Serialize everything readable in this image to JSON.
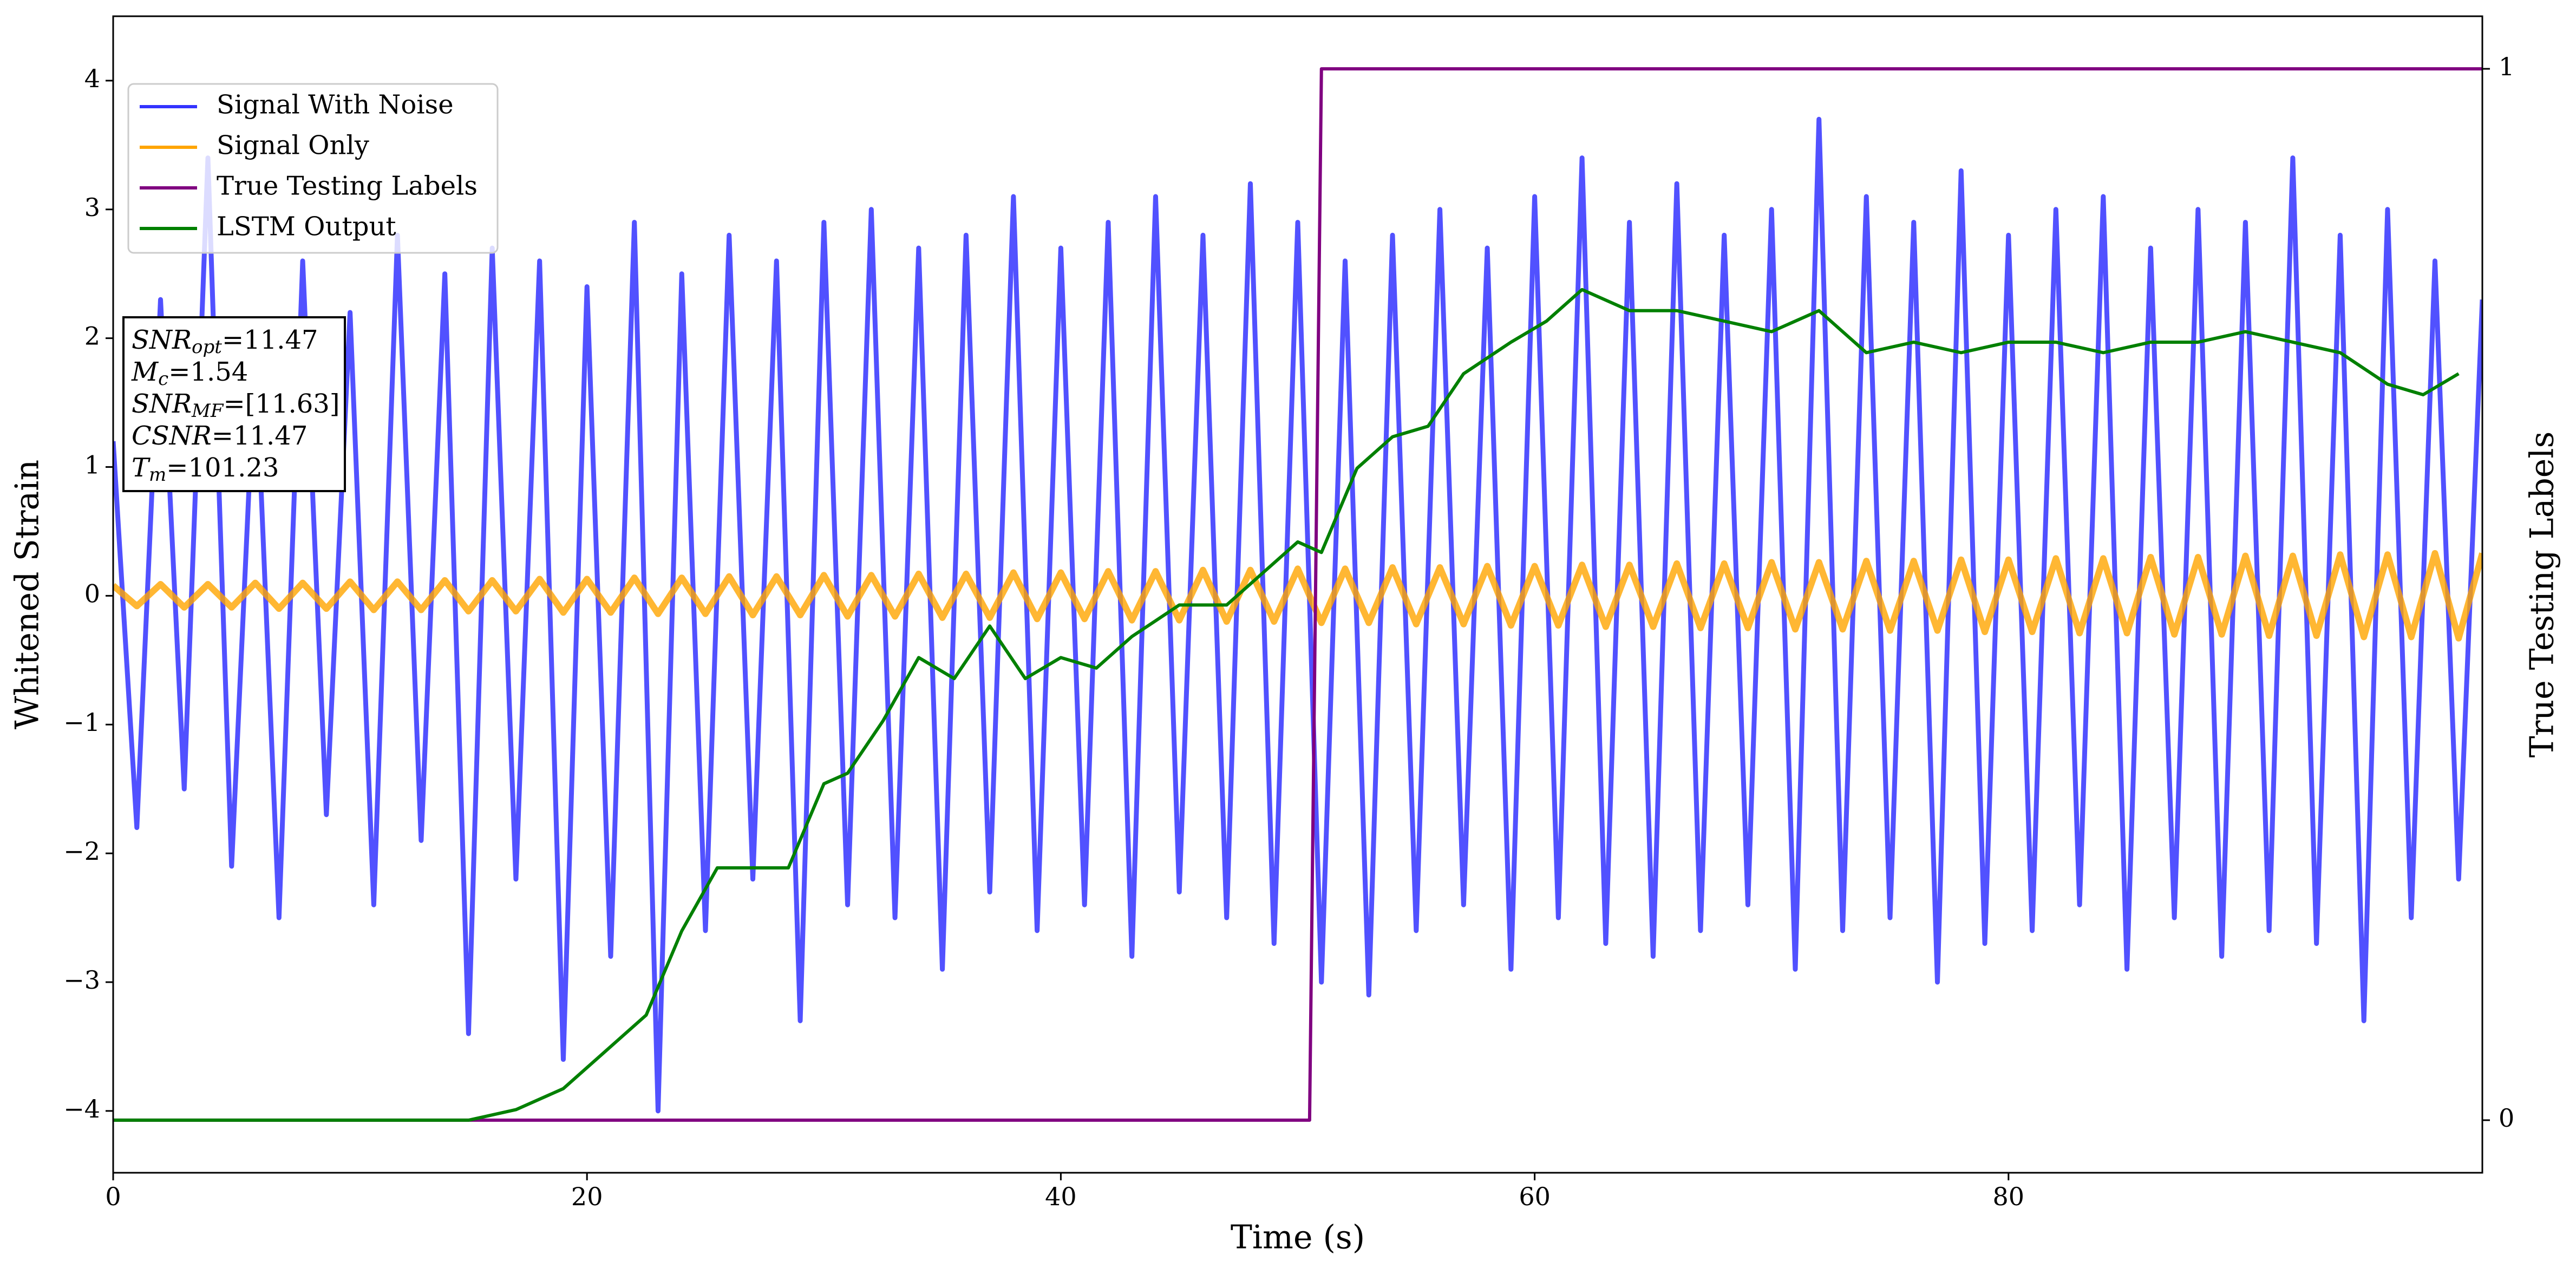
{
  "chart_data": {
    "type": "line",
    "xlabel": "Time (s)",
    "ylabel": "Whitened Strain",
    "y2label": "True Testing Labels",
    "x": [
      0,
      1,
      2,
      3,
      4,
      5,
      6,
      7,
      8,
      9,
      10,
      11,
      12,
      13,
      14,
      15,
      16,
      17,
      18,
      19,
      20,
      21,
      22,
      23,
      24,
      25,
      26,
      27,
      28,
      29,
      30,
      31,
      32,
      33,
      34,
      35,
      36,
      37,
      38,
      39,
      40,
      41,
      42,
      43,
      44,
      45,
      46,
      47,
      48,
      49,
      50,
      51,
      52,
      53,
      54,
      55,
      56,
      57,
      58,
      59,
      60,
      61,
      62,
      63,
      64,
      65,
      66,
      67,
      68,
      69,
      70,
      71,
      72,
      73,
      74,
      75,
      76,
      77,
      78,
      79,
      80,
      81,
      82,
      83,
      84,
      85,
      86,
      87,
      88,
      89,
      90,
      91,
      92,
      93,
      94,
      95,
      96,
      97,
      98,
      99,
      100
    ],
    "series": [
      {
        "name": "Signal With Noise",
        "color": "#3333ff",
        "values": [
          1.2,
          -1.8,
          2.3,
          -1.5,
          3.4,
          -2.1,
          1.9,
          -2.5,
          2.6,
          -1.7,
          2.2,
          -2.4,
          2.8,
          -1.9,
          2.5,
          -3.4,
          2.7,
          -2.2,
          2.6,
          -3.6,
          2.4,
          -2.8,
          2.9,
          -4.0,
          2.5,
          -2.6,
          2.8,
          -2.2,
          2.6,
          -3.3,
          2.9,
          -2.4,
          3.0,
          -2.5,
          2.7,
          -2.9,
          2.8,
          -2.3,
          3.1,
          -2.6,
          2.7,
          -2.4,
          2.9,
          -2.8,
          3.1,
          -2.3,
          2.8,
          -2.5,
          3.2,
          -2.7,
          2.9,
          -3.0,
          2.6,
          -3.1,
          2.8,
          -2.6,
          3.0,
          -2.4,
          2.7,
          -2.9,
          3.1,
          -2.5,
          3.4,
          -2.7,
          2.9,
          -2.8,
          3.2,
          -2.6,
          2.8,
          -2.4,
          3.0,
          -2.9,
          3.7,
          -2.6,
          3.1,
          -2.5,
          2.9,
          -3.0,
          3.3,
          -2.7,
          2.8,
          -2.6,
          3.0,
          -2.4,
          3.1,
          -2.9,
          2.7,
          -2.5,
          3.0,
          -2.8,
          2.9,
          -2.6,
          3.4,
          -2.7,
          2.8,
          -3.3,
          3.0,
          -2.5,
          2.6,
          -2.2,
          2.3
        ]
      },
      {
        "name": "Signal Only",
        "color": "#ffa500",
        "values": [
          0.08,
          -0.08,
          0.09,
          -0.09,
          0.09,
          -0.09,
          0.1,
          -0.1,
          0.1,
          -0.1,
          0.11,
          -0.11,
          0.11,
          -0.11,
          0.12,
          -0.12,
          0.12,
          -0.12,
          0.13,
          -0.13,
          0.13,
          -0.13,
          0.14,
          -0.14,
          0.14,
          -0.14,
          0.15,
          -0.15,
          0.15,
          -0.15,
          0.16,
          -0.16,
          0.16,
          -0.16,
          0.17,
          -0.17,
          0.17,
          -0.17,
          0.18,
          -0.18,
          0.18,
          -0.18,
          0.19,
          -0.19,
          0.19,
          -0.19,
          0.2,
          -0.2,
          0.2,
          -0.2,
          0.21,
          -0.21,
          0.21,
          -0.21,
          0.22,
          -0.22,
          0.22,
          -0.22,
          0.23,
          -0.23,
          0.23,
          -0.23,
          0.24,
          -0.24,
          0.24,
          -0.24,
          0.25,
          -0.25,
          0.25,
          -0.25,
          0.26,
          -0.26,
          0.26,
          -0.26,
          0.27,
          -0.27,
          0.27,
          -0.27,
          0.28,
          -0.28,
          0.28,
          -0.28,
          0.29,
          -0.29,
          0.29,
          -0.29,
          0.3,
          -0.3,
          0.3,
          -0.3,
          0.31,
          -0.31,
          0.31,
          -0.31,
          0.32,
          -0.32,
          0.32,
          -0.32,
          0.33,
          -0.33,
          0.33
        ]
      },
      {
        "name": "True Testing Labels",
        "color": "#800080",
        "axis": "y2",
        "x": [
          0,
          50.5,
          51,
          100
        ],
        "values": [
          0,
          0,
          1,
          1
        ]
      },
      {
        "name": "LSTM Output",
        "color": "#008000",
        "axis": "y2",
        "x": [
          0,
          15,
          17,
          19,
          21,
          22.5,
          24,
          25.5,
          27,
          28.5,
          30,
          31,
          32.5,
          34,
          35.5,
          37,
          38.5,
          40,
          41.5,
          43,
          45,
          47,
          48.5,
          50,
          51,
          52.5,
          54,
          55.5,
          57,
          59,
          60.5,
          62,
          64,
          66,
          68,
          70,
          72,
          74,
          76,
          78,
          80,
          82,
          84,
          86,
          88,
          90,
          92,
          94,
          96,
          97.5,
          99
        ],
        "values": [
          0,
          0,
          0.01,
          0.03,
          0.07,
          0.1,
          0.18,
          0.24,
          0.24,
          0.24,
          0.32,
          0.33,
          0.38,
          0.44,
          0.42,
          0.47,
          0.42,
          0.44,
          0.43,
          0.46,
          0.49,
          0.49,
          0.52,
          0.55,
          0.54,
          0.62,
          0.65,
          0.66,
          0.71,
          0.74,
          0.76,
          0.79,
          0.77,
          0.77,
          0.76,
          0.75,
          0.77,
          0.73,
          0.74,
          0.73,
          0.74,
          0.74,
          0.73,
          0.74,
          0.74,
          0.75,
          0.74,
          0.73,
          0.7,
          0.69,
          0.71
        ]
      }
    ],
    "xlim": [
      0,
      100
    ],
    "xticks": [
      0,
      20,
      40,
      60,
      80
    ],
    "ylim": [
      -4.48,
      4.5
    ],
    "yticks": [
      {
        "value": -4,
        "label": "−4"
      },
      {
        "value": -3,
        "label": "−3"
      },
      {
        "value": -2,
        "label": "−2"
      },
      {
        "value": -1,
        "label": "−1"
      },
      0,
      1,
      2,
      3,
      4
    ],
    "y2lim": [
      -0.05,
      1.05
    ],
    "y2ticks": [
      0,
      1
    ],
    "legend": "upper left",
    "annotation": [
      {
        "main": "SNR",
        "sub": "opt",
        "rest": "=11.47"
      },
      {
        "main": "M",
        "sub": "c",
        "rest": "=1.54"
      },
      {
        "main": "SNR",
        "sub": "MF",
        "rest": "=[11.63]"
      },
      {
        "main": "CSNR",
        "rest": "=11.47"
      },
      {
        "main": "T",
        "sub": "m",
        "rest": "=101.23"
      }
    ]
  }
}
